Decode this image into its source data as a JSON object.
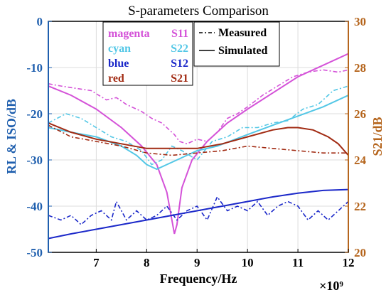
{
  "chart_data": {
    "type": "line",
    "title": "S-parameters Comparison",
    "xlabel": "Frequency/Hz",
    "x_exponent": "×10⁹",
    "ylabel_left": "RL & ISO/dB",
    "ylabel_right": "S21/dB",
    "xlim": [
      6.05,
      12.0
    ],
    "ylim_left": [
      -50,
      0
    ],
    "ylim_right": [
      20,
      30
    ],
    "xticks": [
      "7",
      "8",
      "9",
      "10",
      "11",
      "12"
    ],
    "yticks_left": [
      "0",
      "-10",
      "-20",
      "-30",
      "-40",
      "-50"
    ],
    "yticks_right": [
      "30",
      "28",
      "26",
      "24",
      "22",
      "20"
    ],
    "colors": {
      "left_axis": "#1f5fae",
      "right_axis": "#b5651d",
      "magenta": "#d452d8",
      "cyan": "#53c7e6",
      "blue": "#1b28c9",
      "red": "#a12a12"
    },
    "legend_colors": [
      {
        "word": "magenta",
        "param": "S11",
        "color": "#d452d8"
      },
      {
        "word": "cyan",
        "param": "S22",
        "color": "#53c7e6"
      },
      {
        "word": "blue",
        "param": "S12",
        "color": "#1b28c9"
      },
      {
        "word": "red",
        "param": "S21",
        "color": "#a12a12"
      }
    ],
    "legend_styles": [
      {
        "label": "Measured",
        "dash": "dash-dot"
      },
      {
        "label": "Simulated",
        "dash": "solid"
      }
    ],
    "series": [
      {
        "param": "S11",
        "style": "simulated",
        "axis": "left",
        "color": "#d452d8",
        "x": [
          6.05,
          6.5,
          7.0,
          7.5,
          7.9,
          8.2,
          8.4,
          8.5,
          8.55,
          8.6,
          8.7,
          8.9,
          9.2,
          9.6,
          10.0,
          10.5,
          11.0,
          11.5,
          12.0
        ],
        "y": [
          -14,
          -16,
          -19,
          -23,
          -27,
          -31,
          -37,
          -43,
          -46,
          -44,
          -36,
          -30,
          -26,
          -22,
          -19,
          -15.5,
          -12,
          -9.5,
          -7
        ]
      },
      {
        "param": "S11",
        "style": "measured",
        "axis": "left",
        "color": "#d452d8",
        "x": [
          6.05,
          6.3,
          6.6,
          6.9,
          7.2,
          7.4,
          7.6,
          7.9,
          8.1,
          8.3,
          8.45,
          8.55,
          8.65,
          8.8,
          9.0,
          9.2,
          9.4,
          9.6,
          9.8,
          10.0,
          10.3,
          10.6,
          10.9,
          11.2,
          11.5,
          11.8,
          12.0
        ],
        "y": [
          -13.5,
          -14,
          -14.5,
          -15,
          -17,
          -16.5,
          -18,
          -19.5,
          -21,
          -22,
          -23.5,
          -24.5,
          -26,
          -26.5,
          -25.5,
          -26,
          -24,
          -21,
          -20,
          -18.5,
          -16,
          -14,
          -12,
          -11,
          -10.5,
          -11,
          -10.5
        ]
      },
      {
        "param": "S22",
        "style": "simulated",
        "axis": "left",
        "color": "#53c7e6",
        "x": [
          6.05,
          6.5,
          7.0,
          7.5,
          7.8,
          8.0,
          8.2,
          8.4,
          8.6,
          8.8,
          9.0,
          9.4,
          10.0,
          10.5,
          11.0,
          11.5,
          12.0
        ],
        "y": [
          -23,
          -24,
          -25,
          -27,
          -29,
          -31,
          -32,
          -31,
          -30,
          -29,
          -28,
          -27,
          -24.5,
          -22.5,
          -20.5,
          -18.5,
          -16
        ]
      },
      {
        "param": "S22",
        "style": "measured",
        "axis": "left",
        "color": "#53c7e6",
        "x": [
          6.05,
          6.4,
          6.7,
          7.0,
          7.3,
          7.6,
          7.9,
          8.1,
          8.3,
          8.5,
          8.7,
          9.0,
          9.3,
          9.6,
          9.9,
          10.2,
          10.5,
          10.8,
          11.1,
          11.4,
          11.7,
          12.0
        ],
        "y": [
          -22,
          -20,
          -21,
          -23,
          -25,
          -26,
          -28,
          -31,
          -30,
          -27,
          -28,
          -30,
          -26,
          -25,
          -23,
          -23,
          -22,
          -21.5,
          -19,
          -18,
          -15,
          -14
        ]
      },
      {
        "param": "S12",
        "style": "simulated",
        "axis": "left",
        "color": "#1b28c9",
        "x": [
          6.05,
          6.5,
          7.0,
          7.5,
          8.0,
          8.5,
          9.0,
          9.5,
          10.0,
          10.5,
          11.0,
          11.5,
          12.0
        ],
        "y": [
          -47,
          -46,
          -45,
          -44,
          -43,
          -42,
          -41,
          -40,
          -39,
          -38,
          -37.2,
          -36.6,
          -36.4
        ]
      },
      {
        "param": "S12",
        "style": "measured",
        "axis": "left",
        "color": "#1b28c9",
        "x": [
          6.05,
          6.3,
          6.5,
          6.7,
          6.9,
          7.1,
          7.3,
          7.4,
          7.6,
          7.8,
          8.0,
          8.2,
          8.4,
          8.6,
          8.8,
          9.0,
          9.2,
          9.4,
          9.6,
          9.8,
          10.0,
          10.2,
          10.4,
          10.6,
          10.8,
          11.0,
          11.2,
          11.4,
          11.6,
          11.8,
          12.0
        ],
        "y": [
          -42,
          -43,
          -42,
          -44,
          -42,
          -41,
          -43,
          -39,
          -43,
          -41,
          -43,
          -42,
          -40,
          -43,
          -41,
          -40,
          -43,
          -38,
          -41,
          -40,
          -41,
          -39,
          -42,
          -40,
          -39,
          -40,
          -43,
          -41,
          -43,
          -41,
          -39
        ]
      },
      {
        "param": "S21",
        "style": "simulated",
        "axis": "right",
        "color": "#a12a12",
        "x": [
          6.05,
          6.5,
          7.0,
          7.5,
          8.0,
          8.5,
          9.0,
          9.5,
          10.0,
          10.5,
          10.8,
          11.0,
          11.3,
          11.6,
          11.8,
          12.0
        ],
        "y": [
          25.6,
          25.2,
          24.9,
          24.7,
          24.5,
          24.5,
          24.5,
          24.7,
          25.0,
          25.3,
          25.4,
          25.4,
          25.3,
          25.0,
          24.7,
          24.2
        ]
      },
      {
        "param": "S21",
        "style": "measured",
        "axis": "right",
        "color": "#a12a12",
        "x": [
          6.05,
          6.5,
          7.0,
          7.5,
          8.0,
          8.5,
          9.0,
          9.5,
          10.0,
          10.5,
          11.0,
          11.5,
          12.0
        ],
        "y": [
          25.5,
          25.0,
          24.8,
          24.6,
          24.3,
          24.2,
          24.3,
          24.4,
          24.6,
          24.5,
          24.4,
          24.3,
          24.3
        ]
      }
    ]
  }
}
